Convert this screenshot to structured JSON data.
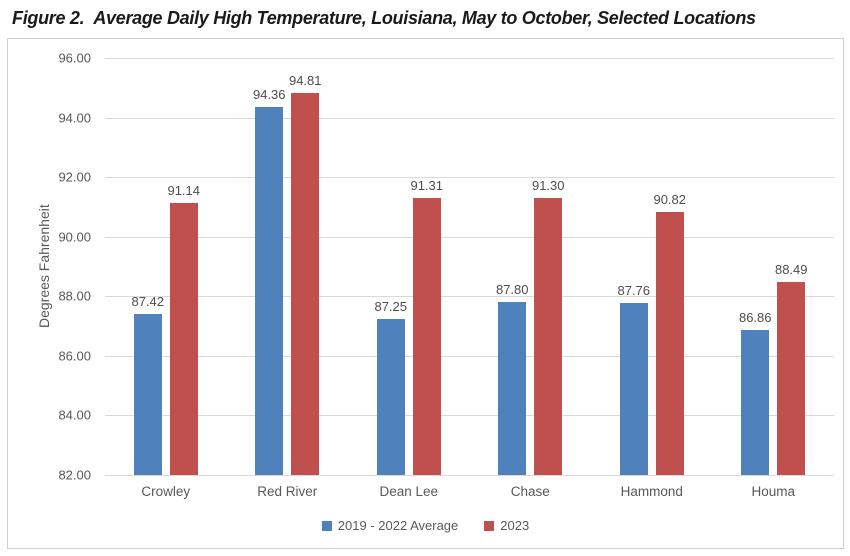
{
  "page": {
    "figure_label": "Figure 2.",
    "title": "Average Daily High Temperature, Louisiana, May to October, Selected Locations"
  },
  "chart_data": {
    "type": "bar",
    "title": "Figure 2.  Average Daily High Temperature, Louisiana, May to October, Selected Locations",
    "categories": [
      "Crowley",
      "Red River",
      "Dean Lee",
      "Chase",
      "Hammond",
      "Houma"
    ],
    "series": [
      {
        "name": "2019 - 2022 Average",
        "color": "#4F81BD",
        "values": [
          87.42,
          94.36,
          87.25,
          87.8,
          87.76,
          86.86
        ]
      },
      {
        "name": "2023",
        "color": "#C0504D",
        "values": [
          91.14,
          94.81,
          91.31,
          91.3,
          90.82,
          88.49
        ]
      }
    ],
    "xlabel": "",
    "ylabel": "Degrees Fahrenheit",
    "ylim": [
      82,
      96
    ],
    "ytick_labels": [
      "96.00",
      "94.00",
      "92.00",
      "90.00",
      "88.00",
      "86.00",
      "84.00",
      "82.00"
    ],
    "grid": true,
    "data_labels": true,
    "legend_position": "bottom"
  },
  "colors": {
    "series_blue": "#4F81BD",
    "series_red": "#C0504D",
    "gridline": "#d9d9d9",
    "axis_text": "#595959",
    "data_label_text": "#4d4d4d",
    "chart_border": "#d0d0d0"
  }
}
